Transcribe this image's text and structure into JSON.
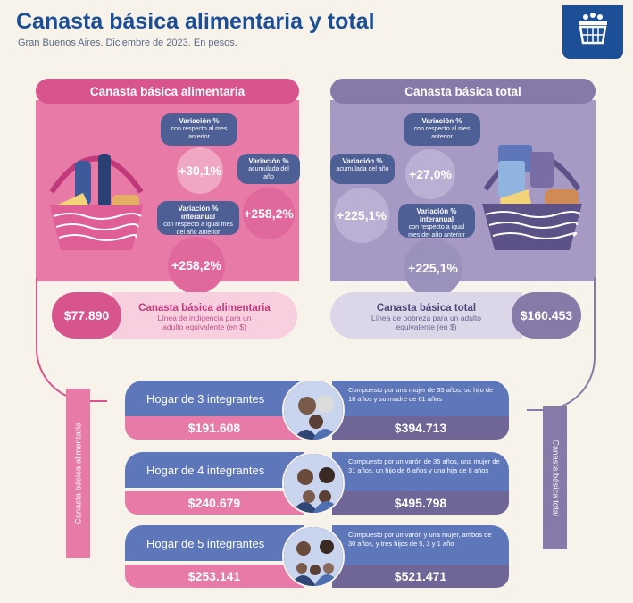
{
  "header": {
    "title": "Canasta básica alimentaria y total",
    "subtitle": "Gran Buenos Aires. Diciembre de 2023. En pesos."
  },
  "cba": {
    "label": "Canasta básica alimentaria",
    "var_mensual": {
      "title": "Variación %",
      "desc": "con respecto al mes anterior",
      "value": "+30,1%"
    },
    "var_acumulada": {
      "title": "Variación %",
      "desc": "acumulada del año",
      "value": "+258,2%"
    },
    "var_interanual": {
      "title": "Variación % interanual",
      "desc": "con respecto a igual mes del año anterior",
      "value": "+258,2%"
    },
    "amount": "$77.890",
    "amount_title": "Canasta básica alimentaria",
    "amount_desc": "Línea de indigencia para un adulto equivalente (en $)",
    "side_label": "Canasta básica alimentaria"
  },
  "cbt": {
    "label": "Canasta básica total",
    "var_mensual": {
      "title": "Variación %",
      "desc": "con respecto al mes anterior",
      "value": "+27,0%"
    },
    "var_acumulada": {
      "title": "Variación %",
      "desc": "acumulada del año",
      "value": "+225,1%"
    },
    "var_interanual": {
      "title": "Variación % interanual",
      "desc": "con respecto a igual mes del año anterior",
      "value": "+225,1%"
    },
    "amount": "$160.453",
    "amount_title": "Canasta básica total",
    "amount_desc": "Línea de pobreza para un adulto equivalente (en $)",
    "side_label": "Canasta básica total"
  },
  "households": [
    {
      "label": "Hogar de 3 integrantes",
      "desc": "Compuesto por una mujer de 35 años, su hijo de 18 años y su madre de 61 años",
      "cba": "$191.608",
      "cbt": "$394.713"
    },
    {
      "label": "Hogar de 4 integrantes",
      "desc": "Compuesto por un varón de 35 años, una mujer de 31 años, un hijo de 6 años y una hija de 8 años",
      "cba": "$240.679",
      "cbt": "$495.798"
    },
    {
      "label": "Hogar de 5 integrantes",
      "desc": "Compuesto por un varón y una mujer, ambos de 30 años, y tres hijos de 5, 3 y 1 año",
      "cba": "$253.141",
      "cbt": "$521.471"
    }
  ],
  "colors": {
    "pink": "#d8548d",
    "purple": "#857aa8",
    "blue": "#1c4f95",
    "household_blue": "#5d77ba"
  },
  "icons": {
    "logo": "shopping-cart-icon",
    "pink_basket": "food-basket-icon",
    "purple_basket": "total-basket-icon",
    "family": "family-photo-icon"
  }
}
